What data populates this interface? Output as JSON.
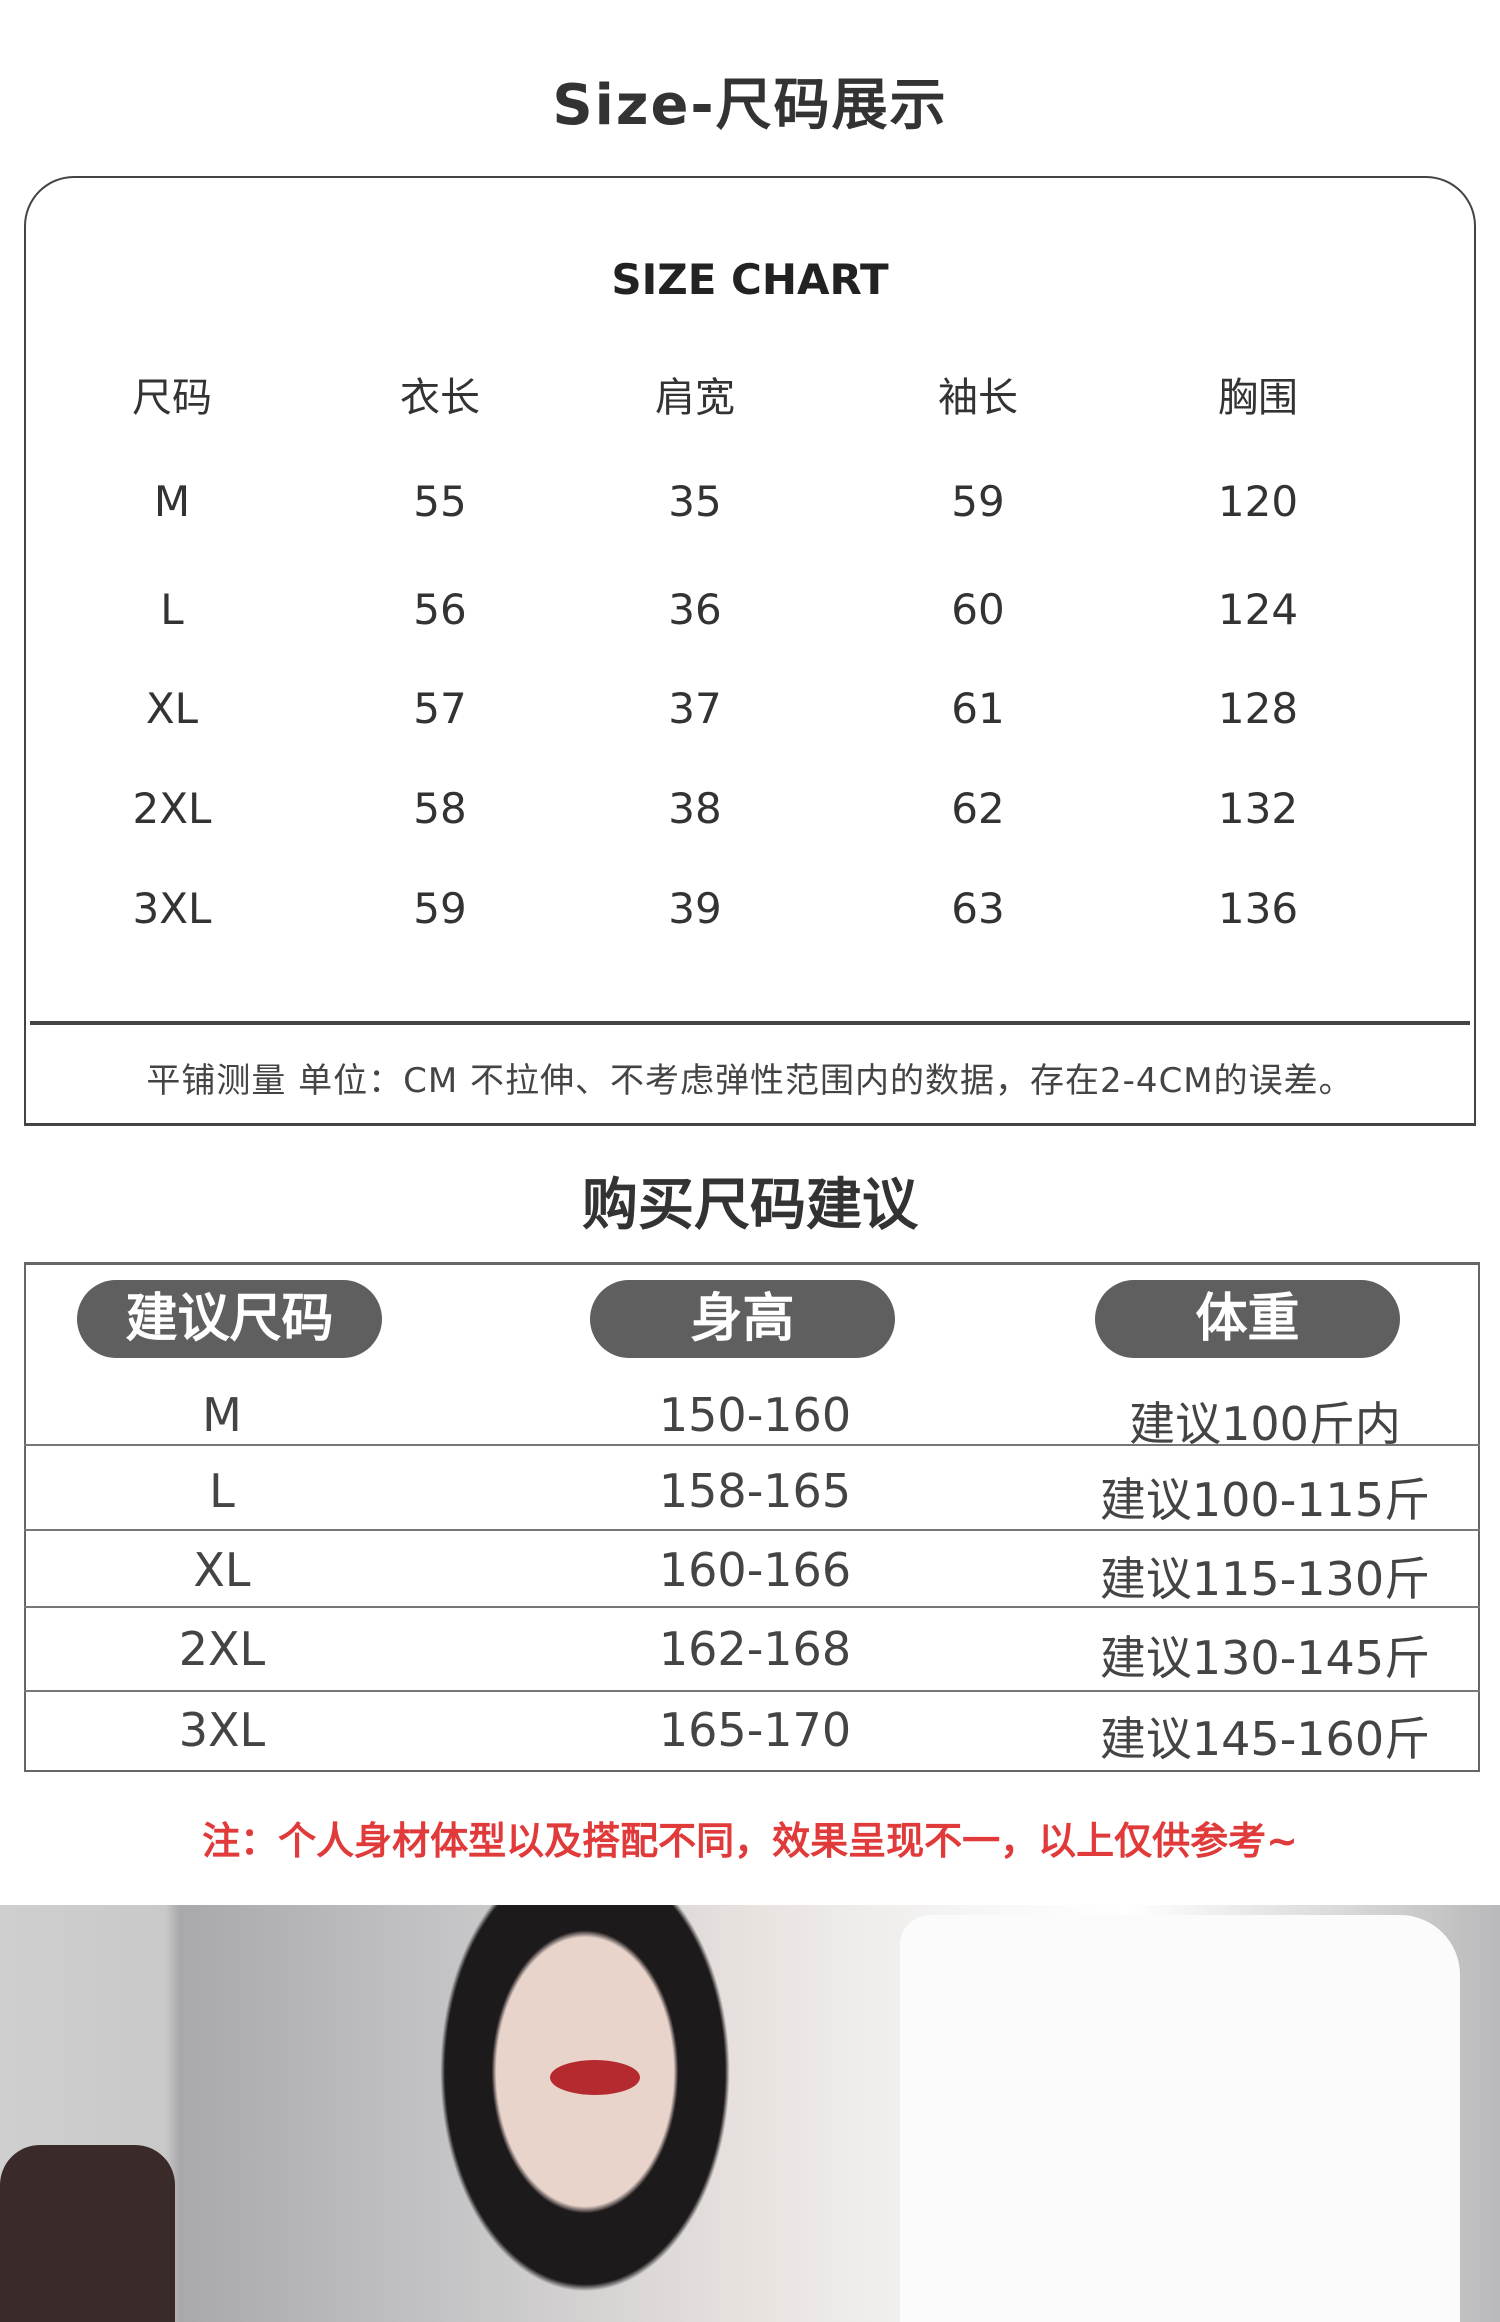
{
  "size_display": {
    "title": "Size-尺码展示"
  },
  "size_chart": {
    "title": "SIZE CHART",
    "headers": [
      "尺码",
      "衣长",
      "肩宽",
      "袖长",
      "胸围"
    ],
    "rows": [
      [
        "M",
        "55",
        "35",
        "59",
        "120"
      ],
      [
        "L",
        "56",
        "36",
        "60",
        "124"
      ],
      [
        "XL",
        "57",
        "37",
        "61",
        "128"
      ],
      [
        "2XL",
        "58",
        "38",
        "62",
        "132"
      ],
      [
        "3XL",
        "59",
        "39",
        "63",
        "136"
      ]
    ],
    "note": "平铺测量  单位：CM  不拉伸、不考虑弹性范围内的数据，存在2-4CM的误差。"
  },
  "recommendation": {
    "title": "购买尺码建议",
    "headers": [
      "建议尺码",
      "身高",
      "体重"
    ],
    "rows": [
      [
        "M",
        "150-160",
        "建议100斤内"
      ],
      [
        "L",
        "158-165",
        "建议100-115斤"
      ],
      [
        "XL",
        "160-166",
        "建议115-130斤"
      ],
      [
        "2XL",
        "162-168",
        "建议130-145斤"
      ],
      [
        "3XL",
        "165-170",
        "建议145-160斤"
      ]
    ],
    "header_pill_color": "#5f5f5f"
  },
  "disclaimer": {
    "text": "注：个人身材体型以及搭配不同，效果呈现不一，以上仅供参考~",
    "color": "#e03a3a"
  },
  "photo": {
    "subject": "model-photo"
  }
}
